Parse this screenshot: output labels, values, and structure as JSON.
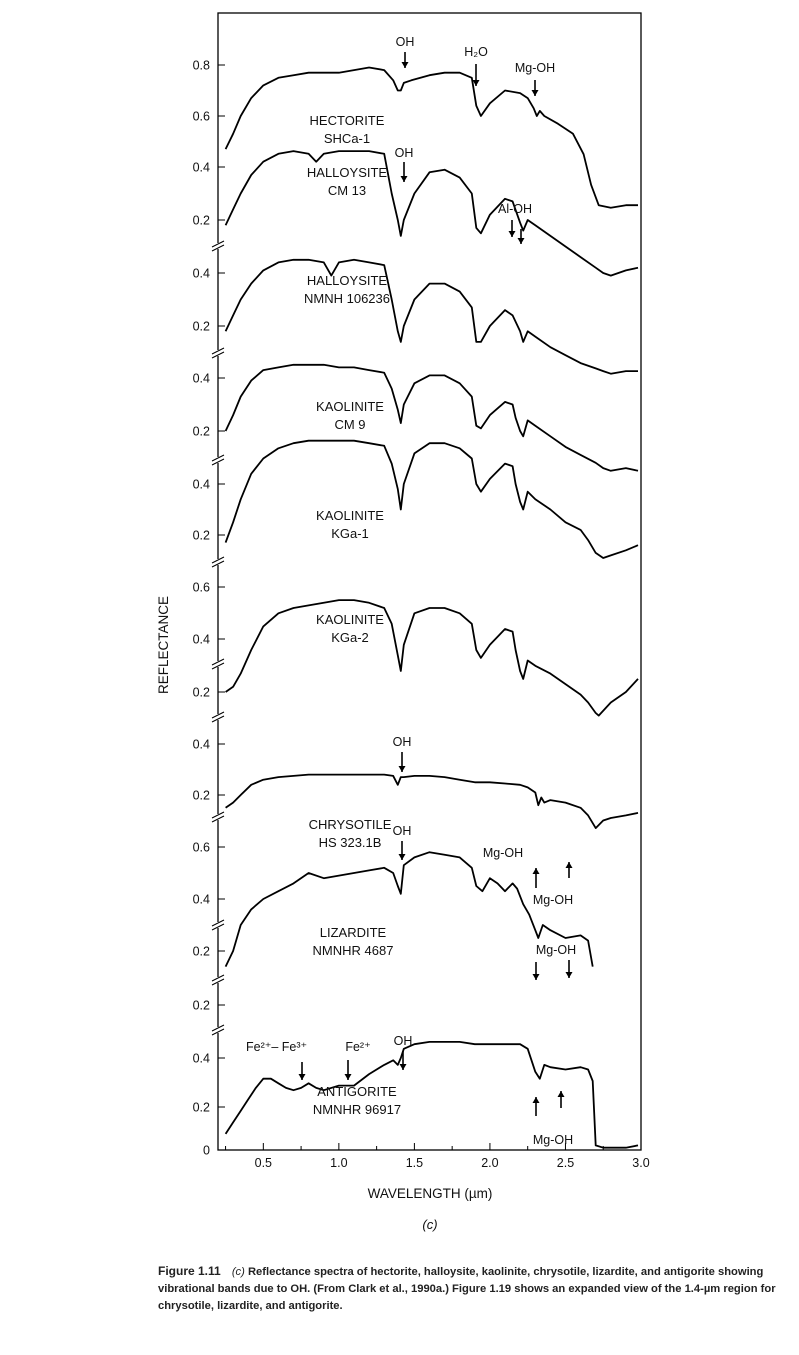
{
  "chart_data": {
    "type": "line",
    "title": "",
    "xlabel": "WAVELENGTH (µm)",
    "ylabel": "REFLECTANCE",
    "xlim": [
      0.2,
      3.0
    ],
    "x_ticks": [
      "0.5",
      "1.0",
      "1.5",
      "2.0",
      "2.5",
      "3.0"
    ],
    "y_ticks": [
      {
        "label": "0.8"
      },
      {
        "label": "0.6"
      },
      {
        "label": "0.4"
      },
      {
        "label": "0.2"
      },
      {
        "label": "0.4"
      },
      {
        "label": "0.2"
      },
      {
        "label": "0.4"
      },
      {
        "label": "0.2"
      },
      {
        "label": "0.4"
      },
      {
        "label": "0.2"
      },
      {
        "label": "0.6"
      },
      {
        "label": "0.4"
      },
      {
        "label": "0.2"
      },
      {
        "label": "0.4"
      },
      {
        "label": "0.2"
      },
      {
        "label": "0.6"
      },
      {
        "label": "0.4"
      },
      {
        "label": "0.2"
      },
      {
        "label": "0.2"
      },
      {
        "label": "0.4"
      },
      {
        "label": "0.2"
      },
      {
        "label": "0"
      }
    ],
    "series": [
      {
        "name": "HECTORITE SHCa-1",
        "label_lines": [
          "HECTORITE",
          "SHCa-1"
        ],
        "x": [
          0.25,
          0.3,
          0.35,
          0.42,
          0.5,
          0.6,
          0.7,
          0.8,
          0.9,
          1.0,
          1.1,
          1.2,
          1.3,
          1.36,
          1.39,
          1.41,
          1.43,
          1.48,
          1.6,
          1.7,
          1.8,
          1.88,
          1.91,
          1.94,
          2.0,
          2.1,
          2.2,
          2.25,
          2.29,
          2.31,
          2.33,
          2.36,
          2.45,
          2.55,
          2.62,
          2.67,
          2.72,
          2.8,
          2.9,
          2.98
        ],
        "y": [
          0.47,
          0.53,
          0.6,
          0.67,
          0.72,
          0.75,
          0.76,
          0.77,
          0.77,
          0.77,
          0.78,
          0.79,
          0.78,
          0.74,
          0.7,
          0.7,
          0.73,
          0.74,
          0.76,
          0.77,
          0.77,
          0.75,
          0.64,
          0.6,
          0.65,
          0.7,
          0.69,
          0.67,
          0.63,
          0.6,
          0.62,
          0.6,
          0.57,
          0.53,
          0.45,
          0.33,
          0.25,
          0.24,
          0.25,
          0.25
        ]
      },
      {
        "name": "HALLOYSITE CM 13",
        "label_lines": [
          "HALLOYSITE",
          "CM 13"
        ],
        "x": [
          0.25,
          0.3,
          0.35,
          0.42,
          0.5,
          0.6,
          0.7,
          0.8,
          0.85,
          0.9,
          1.0,
          1.1,
          1.2,
          1.3,
          1.35,
          1.39,
          1.41,
          1.43,
          1.5,
          1.6,
          1.7,
          1.8,
          1.88,
          1.91,
          1.94,
          2.0,
          2.1,
          2.15,
          2.2,
          2.22,
          2.25,
          2.3,
          2.4,
          2.5,
          2.6,
          2.7,
          2.75,
          2.8,
          2.9,
          2.98
        ],
        "y": [
          0.18,
          0.24,
          0.3,
          0.37,
          0.42,
          0.45,
          0.46,
          0.45,
          0.42,
          0.45,
          0.46,
          0.46,
          0.46,
          0.45,
          0.3,
          0.2,
          0.14,
          0.2,
          0.3,
          0.38,
          0.39,
          0.36,
          0.3,
          0.17,
          0.15,
          0.22,
          0.28,
          0.27,
          0.19,
          0.16,
          0.2,
          0.18,
          0.14,
          0.1,
          0.06,
          0.02,
          0.0,
          -0.01,
          0.01,
          0.02
        ]
      },
      {
        "name": "HALLOYSITE NMNH 106236",
        "label_lines": [
          "HALLOYSITE",
          "NMNH 106236"
        ],
        "x": [
          0.25,
          0.3,
          0.35,
          0.42,
          0.5,
          0.6,
          0.7,
          0.8,
          0.9,
          0.95,
          1.0,
          1.1,
          1.2,
          1.3,
          1.35,
          1.39,
          1.41,
          1.43,
          1.5,
          1.6,
          1.7,
          1.8,
          1.88,
          1.91,
          1.94,
          2.0,
          2.1,
          2.15,
          2.2,
          2.22,
          2.25,
          2.3,
          2.4,
          2.5,
          2.6,
          2.7,
          2.75,
          2.8,
          2.9,
          2.98
        ],
        "y": [
          0.18,
          0.24,
          0.3,
          0.36,
          0.41,
          0.44,
          0.45,
          0.45,
          0.44,
          0.39,
          0.44,
          0.45,
          0.44,
          0.43,
          0.3,
          0.18,
          0.14,
          0.2,
          0.3,
          0.36,
          0.36,
          0.33,
          0.27,
          0.14,
          0.14,
          0.2,
          0.26,
          0.24,
          0.18,
          0.14,
          0.18,
          0.16,
          0.12,
          0.09,
          0.06,
          0.04,
          0.03,
          0.02,
          0.03,
          0.03
        ]
      },
      {
        "name": "KAOLINITE CM 9",
        "label_lines": [
          "KAOLINITE",
          "CM 9"
        ],
        "x": [
          0.25,
          0.3,
          0.35,
          0.42,
          0.5,
          0.6,
          0.7,
          0.8,
          0.9,
          1.0,
          1.1,
          1.2,
          1.3,
          1.35,
          1.39,
          1.41,
          1.43,
          1.5,
          1.6,
          1.7,
          1.8,
          1.88,
          1.91,
          1.94,
          2.0,
          2.1,
          2.15,
          2.17,
          2.2,
          2.22,
          2.25,
          2.3,
          2.4,
          2.5,
          2.6,
          2.7,
          2.75,
          2.8,
          2.9,
          2.98
        ],
        "y": [
          0.2,
          0.26,
          0.33,
          0.39,
          0.43,
          0.44,
          0.45,
          0.45,
          0.45,
          0.44,
          0.44,
          0.43,
          0.42,
          0.36,
          0.28,
          0.23,
          0.3,
          0.38,
          0.41,
          0.41,
          0.38,
          0.33,
          0.22,
          0.21,
          0.26,
          0.31,
          0.3,
          0.25,
          0.2,
          0.18,
          0.24,
          0.22,
          0.18,
          0.14,
          0.11,
          0.08,
          0.06,
          0.05,
          0.06,
          0.05
        ]
      },
      {
        "name": "KAOLINITE KGa-1",
        "label_lines": [
          "KAOLINITE",
          "KGa-1"
        ],
        "x": [
          0.25,
          0.3,
          0.35,
          0.42,
          0.5,
          0.6,
          0.7,
          0.8,
          0.9,
          1.0,
          1.1,
          1.2,
          1.3,
          1.35,
          1.39,
          1.41,
          1.43,
          1.5,
          1.6,
          1.7,
          1.8,
          1.88,
          1.91,
          1.94,
          2.0,
          2.1,
          2.15,
          2.17,
          2.2,
          2.22,
          2.25,
          2.3,
          2.4,
          2.5,
          2.6,
          2.65,
          2.7,
          2.75,
          2.8,
          2.9,
          2.98
        ],
        "y": [
          0.17,
          0.25,
          0.34,
          0.44,
          0.5,
          0.54,
          0.56,
          0.57,
          0.57,
          0.57,
          0.57,
          0.56,
          0.55,
          0.48,
          0.38,
          0.3,
          0.4,
          0.52,
          0.56,
          0.56,
          0.54,
          0.5,
          0.4,
          0.37,
          0.42,
          0.48,
          0.47,
          0.4,
          0.33,
          0.3,
          0.37,
          0.34,
          0.3,
          0.25,
          0.22,
          0.18,
          0.13,
          0.11,
          0.12,
          0.14,
          0.16
        ]
      },
      {
        "name": "KAOLINITE KGa-2",
        "label_lines": [
          "KAOLINITE",
          "KGa-2"
        ],
        "x": [
          0.25,
          0.3,
          0.35,
          0.42,
          0.5,
          0.6,
          0.7,
          0.8,
          0.9,
          1.0,
          1.1,
          1.2,
          1.3,
          1.35,
          1.39,
          1.41,
          1.43,
          1.5,
          1.6,
          1.7,
          1.8,
          1.88,
          1.91,
          1.94,
          2.0,
          2.1,
          2.15,
          2.17,
          2.2,
          2.22,
          2.25,
          2.3,
          2.4,
          2.5,
          2.6,
          2.65,
          2.7,
          2.72,
          2.8,
          2.9,
          2.98
        ],
        "y": [
          0.2,
          0.22,
          0.27,
          0.36,
          0.45,
          0.5,
          0.52,
          0.53,
          0.54,
          0.55,
          0.55,
          0.54,
          0.52,
          0.46,
          0.34,
          0.28,
          0.38,
          0.5,
          0.52,
          0.52,
          0.5,
          0.46,
          0.36,
          0.33,
          0.38,
          0.44,
          0.43,
          0.36,
          0.28,
          0.25,
          0.32,
          0.3,
          0.27,
          0.23,
          0.19,
          0.16,
          0.12,
          0.11,
          0.16,
          0.2,
          0.25
        ]
      },
      {
        "name": "CHRYSOTILE HS 323.1B",
        "label_lines": [
          "CHRYSOTILE",
          "HS 323.1B"
        ],
        "x": [
          0.25,
          0.3,
          0.35,
          0.42,
          0.5,
          0.6,
          0.7,
          0.8,
          0.9,
          1.0,
          1.1,
          1.2,
          1.3,
          1.36,
          1.39,
          1.41,
          1.43,
          1.5,
          1.6,
          1.7,
          1.8,
          1.9,
          2.0,
          2.1,
          2.2,
          2.25,
          2.3,
          2.32,
          2.34,
          2.36,
          2.4,
          2.5,
          2.6,
          2.65,
          2.7,
          2.75,
          2.8,
          2.9,
          2.98
        ],
        "y": [
          0.15,
          0.17,
          0.2,
          0.24,
          0.26,
          0.27,
          0.275,
          0.28,
          0.28,
          0.28,
          0.28,
          0.28,
          0.28,
          0.275,
          0.24,
          0.27,
          0.27,
          0.275,
          0.275,
          0.27,
          0.26,
          0.25,
          0.25,
          0.245,
          0.24,
          0.23,
          0.21,
          0.16,
          0.19,
          0.17,
          0.18,
          0.17,
          0.15,
          0.12,
          0.07,
          0.1,
          0.11,
          0.12,
          0.13
        ]
      },
      {
        "name": "LIZARDITE NMNHR 4687",
        "label_lines": [
          "LIZARDITE",
          "NMNHR 4687"
        ],
        "x": [
          0.25,
          0.3,
          0.35,
          0.42,
          0.5,
          0.6,
          0.7,
          0.8,
          0.9,
          1.0,
          1.1,
          1.2,
          1.3,
          1.36,
          1.39,
          1.41,
          1.43,
          1.5,
          1.6,
          1.7,
          1.8,
          1.88,
          1.91,
          1.95,
          2.0,
          2.05,
          2.1,
          2.15,
          2.18,
          2.22,
          2.26,
          2.3,
          2.32,
          2.35,
          2.4,
          2.5,
          2.6,
          2.65,
          2.68
        ],
        "y": [
          0.14,
          0.2,
          0.3,
          0.36,
          0.4,
          0.43,
          0.46,
          0.5,
          0.48,
          0.49,
          0.5,
          0.51,
          0.52,
          0.5,
          0.45,
          0.42,
          0.53,
          0.56,
          0.58,
          0.57,
          0.56,
          0.52,
          0.45,
          0.43,
          0.48,
          0.46,
          0.43,
          0.46,
          0.44,
          0.38,
          0.34,
          0.28,
          0.25,
          0.3,
          0.28,
          0.25,
          0.26,
          0.24,
          0.14
        ]
      },
      {
        "name": "ANTIGORITE NMNHR 96917",
        "label_lines": [
          "ANTIGORITE",
          "NMNHR 96917"
        ],
        "x": [
          0.25,
          0.3,
          0.35,
          0.4,
          0.45,
          0.5,
          0.55,
          0.6,
          0.65,
          0.7,
          0.75,
          0.8,
          0.85,
          0.9,
          1.0,
          1.1,
          1.2,
          1.3,
          1.36,
          1.39,
          1.41,
          1.43,
          1.5,
          1.6,
          1.7,
          1.8,
          1.9,
          2.0,
          2.1,
          2.2,
          2.25,
          2.3,
          2.33,
          2.36,
          2.4,
          2.5,
          2.6,
          2.65,
          2.68,
          2.7,
          2.75,
          2.8,
          2.9,
          2.98
        ],
        "y": [
          0.07,
          0.12,
          0.17,
          0.22,
          0.27,
          0.31,
          0.31,
          0.29,
          0.27,
          0.26,
          0.27,
          0.29,
          0.27,
          0.26,
          0.28,
          0.28,
          0.33,
          0.37,
          0.39,
          0.37,
          0.4,
          0.44,
          0.46,
          0.47,
          0.47,
          0.47,
          0.46,
          0.46,
          0.46,
          0.46,
          0.44,
          0.34,
          0.31,
          0.37,
          0.36,
          0.35,
          0.36,
          0.35,
          0.3,
          0.02,
          0.01,
          0.01,
          0.01,
          0.02
        ]
      }
    ],
    "annotations": {
      "oh": "OH",
      "h2o": "H₂O",
      "mgoh": "Mg-OH",
      "aloh": "Al-OH",
      "fe2fe3": "Fe²⁺– Fe³⁺",
      "fe2": "Fe²⁺"
    },
    "panel_label": "(c)"
  },
  "caption": {
    "label": "Figure 1.11",
    "sub": "(c)",
    "text": "Reflectance spectra of hectorite, halloysite, kaolinite, chrysotile, lizardite, and antigorite showing vibrational bands due to OH. (From Clark et al., 1990a.) Figure 1.19 shows an expanded view of the 1.4-µm region for chrysotile, lizardite, and antigorite."
  }
}
